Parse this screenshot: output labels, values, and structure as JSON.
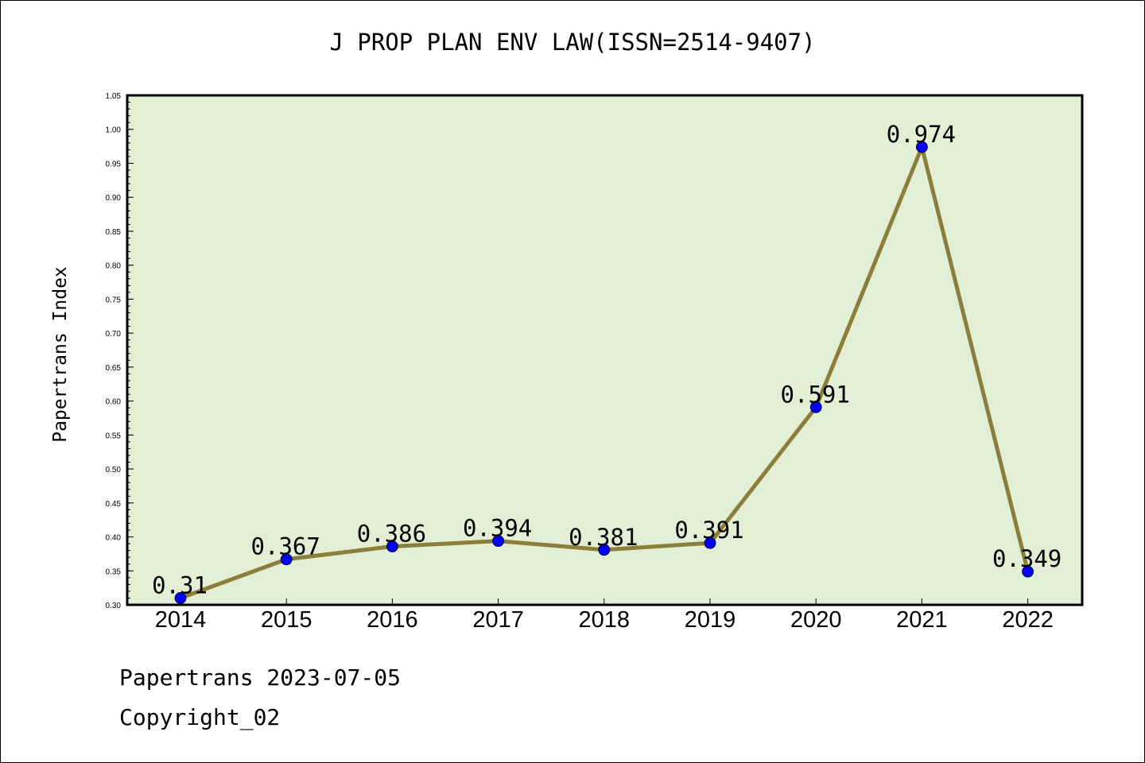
{
  "chart_data": {
    "type": "line",
    "title": "J PROP PLAN ENV LAW(ISSN=2514-9407)",
    "xlabel": "",
    "ylabel": "Papertrans Index",
    "categories": [
      "2014",
      "2015",
      "2016",
      "2017",
      "2018",
      "2019",
      "2020",
      "2021",
      "2022"
    ],
    "values": [
      0.31,
      0.367,
      0.386,
      0.394,
      0.381,
      0.391,
      0.591,
      0.974,
      0.349
    ],
    "data_labels": [
      "0.31",
      "0.367",
      "0.386",
      "0.394",
      "0.381",
      "0.391",
      "0.591",
      "0.974",
      "0.349"
    ],
    "ylim": [
      0.3,
      1.05
    ],
    "yticks": [
      "0.30",
      "0.35",
      "0.40",
      "0.45",
      "0.50",
      "0.55",
      "0.60",
      "0.65",
      "0.70",
      "0.75",
      "0.80",
      "0.85",
      "0.90",
      "0.95",
      "1.00",
      "1.05"
    ],
    "grid": false,
    "colors": {
      "plot_background": "#e2efd5",
      "line": "#8b7d3a",
      "marker": "#0000ff"
    }
  },
  "footer": {
    "line1": "Papertrans 2023-07-05",
    "line2": "Copyright_02"
  }
}
